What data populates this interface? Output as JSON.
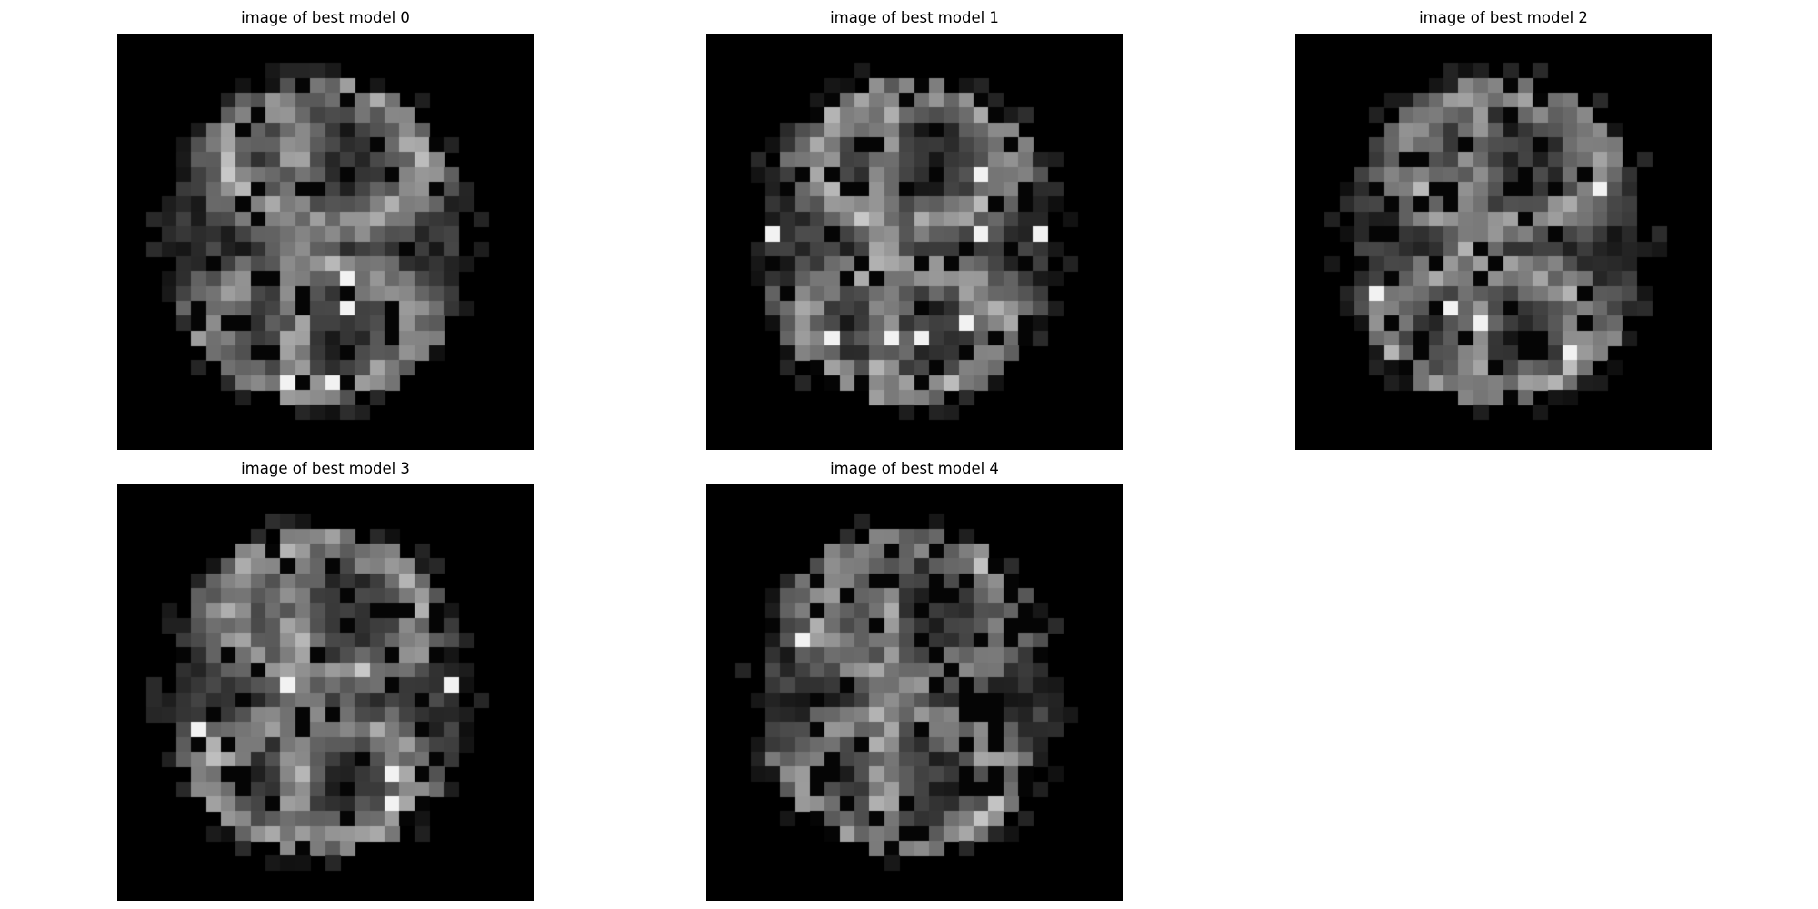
{
  "figure": {
    "background": "#ffffff",
    "colormap": "gray"
  },
  "chart_data": [
    {
      "type": "heatmap",
      "title": "image of best model 0",
      "grid_size": [
        28,
        28
      ],
      "value_range": [
        0,
        255
      ],
      "seed": 11,
      "pattern": "stroke-figure"
    },
    {
      "type": "heatmap",
      "title": "image of best model 1",
      "grid_size": [
        28,
        28
      ],
      "value_range": [
        0,
        255
      ],
      "seed": 23,
      "pattern": "stroke-figure"
    },
    {
      "type": "heatmap",
      "title": "image of best model 2",
      "grid_size": [
        28,
        28
      ],
      "value_range": [
        0,
        255
      ],
      "seed": 37,
      "pattern": "stroke-figure"
    },
    {
      "type": "heatmap",
      "title": "image of best model 3",
      "grid_size": [
        28,
        28
      ],
      "value_range": [
        0,
        255
      ],
      "seed": 41,
      "pattern": "stroke-figure"
    },
    {
      "type": "heatmap",
      "title": "image of best model 4",
      "grid_size": [
        28,
        28
      ],
      "value_range": [
        0,
        255
      ],
      "seed": 59,
      "pattern": "stroke-figure"
    }
  ]
}
